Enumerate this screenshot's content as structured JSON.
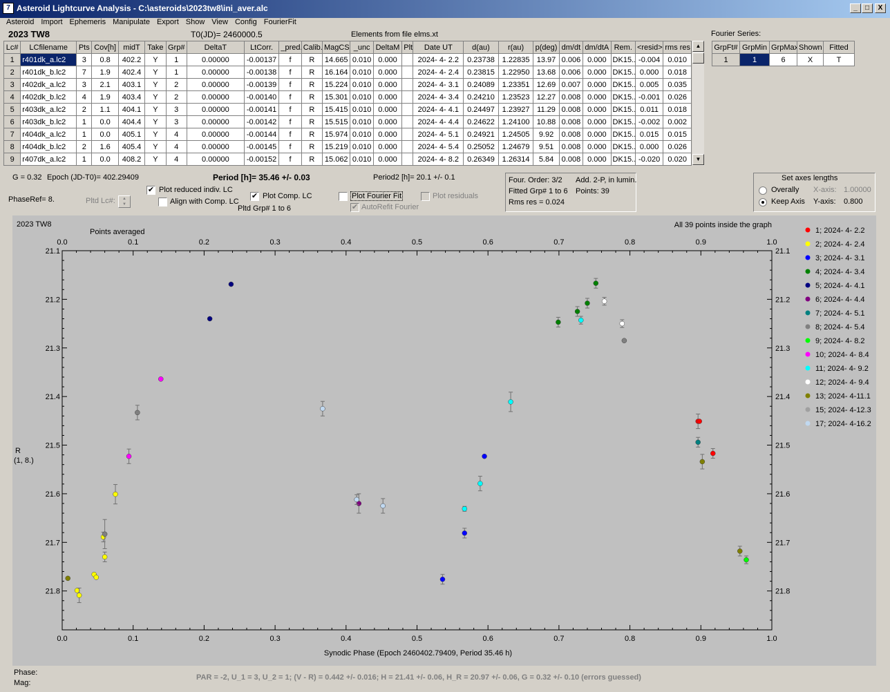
{
  "window": {
    "title": "Asteroid Lightcurve Analysis - C:\\asteroids\\2023tw8\\ini_aver.alc",
    "minimize": "_",
    "maximize": "□",
    "close": "X",
    "icon": "app-icon"
  },
  "menu": [
    "Asteroid",
    "Import",
    "Ephemeris",
    "Manipulate",
    "Export",
    "Show",
    "View",
    "Config",
    "FourierFit"
  ],
  "header": {
    "object": "2023 TW8",
    "t0": "T0(JD)= 2460000.5",
    "elements": "Elements from file elms.xt"
  },
  "lc_table": {
    "columns": [
      "Lc#",
      "LCfilename",
      "Pts",
      "Cov[h]",
      "midT",
      "Take",
      "Grp#",
      "DeltaT",
      "LtCorr.",
      "_pred.",
      "Calib.",
      "MagCS",
      "_unc",
      "DeltaM",
      "Plt",
      "Date UT",
      "d(au)",
      "r(au)",
      "p(deg)",
      "dm/dt",
      "dm/dtA",
      "Rem.",
      "<resid>",
      "rms res"
    ],
    "rows": [
      [
        "1",
        "r401dk_a.lc2",
        "3",
        "0.8",
        "402.2",
        "Y",
        "1",
        "0.00000",
        "-0.00137",
        "f",
        "R",
        "14.665",
        "0.010",
        "0.000",
        "",
        "2024- 4- 2.2",
        "0.23738",
        "1.22835",
        "13.97",
        "0.006",
        "0.000",
        "DK15..",
        "-0.004",
        "0.010"
      ],
      [
        "2",
        "r401dk_b.lc2",
        "7",
        "1.9",
        "402.4",
        "Y",
        "1",
        "0.00000",
        "-0.00138",
        "f",
        "R",
        "16.164",
        "0.010",
        "0.000",
        "",
        "2024- 4- 2.4",
        "0.23815",
        "1.22950",
        "13.68",
        "0.006",
        "0.000",
        "DK15..",
        "0.000",
        "0.018"
      ],
      [
        "3",
        "r402dk_a.lc2",
        "3",
        "2.1",
        "403.1",
        "Y",
        "2",
        "0.00000",
        "-0.00139",
        "f",
        "R",
        "15.224",
        "0.010",
        "0.000",
        "",
        "2024- 4- 3.1",
        "0.24089",
        "1.23351",
        "12.69",
        "0.007",
        "0.000",
        "DK15..",
        "0.005",
        "0.035"
      ],
      [
        "4",
        "r402dk_b.lc2",
        "4",
        "1.9",
        "403.4",
        "Y",
        "2",
        "0.00000",
        "-0.00140",
        "f",
        "R",
        "15.301",
        "0.010",
        "0.000",
        "",
        "2024- 4- 3.4",
        "0.24210",
        "1.23523",
        "12.27",
        "0.008",
        "0.000",
        "DK15..",
        "-0.001",
        "0.026"
      ],
      [
        "5",
        "r403dk_a.lc2",
        "2",
        "1.1",
        "404.1",
        "Y",
        "3",
        "0.00000",
        "-0.00141",
        "f",
        "R",
        "15.415",
        "0.010",
        "0.000",
        "",
        "2024- 4- 4.1",
        "0.24497",
        "1.23927",
        "11.29",
        "0.008",
        "0.000",
        "DK15..",
        "0.011",
        "0.018"
      ],
      [
        "6",
        "r403dk_b.lc2",
        "1",
        "0.0",
        "404.4",
        "Y",
        "3",
        "0.00000",
        "-0.00142",
        "f",
        "R",
        "15.515",
        "0.010",
        "0.000",
        "",
        "2024- 4- 4.4",
        "0.24622",
        "1.24100",
        "10.88",
        "0.008",
        "0.000",
        "DK15..",
        "-0.002",
        "0.002"
      ],
      [
        "7",
        "r404dk_a.lc2",
        "1",
        "0.0",
        "405.1",
        "Y",
        "4",
        "0.00000",
        "-0.00144",
        "f",
        "R",
        "15.974",
        "0.010",
        "0.000",
        "",
        "2024- 4- 5.1",
        "0.24921",
        "1.24505",
        "9.92",
        "0.008",
        "0.000",
        "DK15..",
        "0.015",
        "0.015"
      ],
      [
        "8",
        "r404dk_b.lc2",
        "2",
        "1.6",
        "405.4",
        "Y",
        "4",
        "0.00000",
        "-0.00145",
        "f",
        "R",
        "15.219",
        "0.010",
        "0.000",
        "",
        "2024- 4- 5.4",
        "0.25052",
        "1.24679",
        "9.51",
        "0.008",
        "0.000",
        "DK15..",
        "0.000",
        "0.026"
      ],
      [
        "9",
        "r407dk_a.lc2",
        "1",
        "0.0",
        "408.2",
        "Y",
        "4",
        "0.00000",
        "-0.00152",
        "f",
        "R",
        "15.062",
        "0.010",
        "0.000",
        "",
        "2024- 4- 8.2",
        "0.26349",
        "1.26314",
        "5.84",
        "0.008",
        "0.000",
        "DK15..",
        "-0.020",
        "0.020"
      ]
    ]
  },
  "fourier_series": {
    "label": "Fourier Series:",
    "columns": [
      "GrpFt#",
      "GrpMin",
      "GrpMax",
      "Shown",
      "Fitted"
    ],
    "row": [
      "1",
      "1",
      "6",
      "X",
      "T"
    ]
  },
  "info": {
    "g": "G = 0.32",
    "epoch": "Epoch (JD-T0)= 402.29409",
    "period": "Period [h]= 35.46 +/- 0.03",
    "period2": "Period2 [h]= 20.1 +/- 0.1",
    "phaseref": "PhaseRef= 8.",
    "pltd_lc": "Pltd Lc#:",
    "pltd_grp": "Pltd Grp#  1   to   6"
  },
  "checks": {
    "plot_reduced": {
      "label": "Plot reduced indiv. LC",
      "checked": true
    },
    "align_comp": {
      "label": "Align with Comp. LC",
      "checked": false
    },
    "plot_comp": {
      "label": "Plot Comp. LC",
      "checked": true
    },
    "plot_fourier": {
      "label": "Plot Fourier Fit",
      "checked": false
    },
    "plot_residuals": {
      "label": "Plot residuals",
      "checked": false
    },
    "autorefit": {
      "label": "AutoRefit Fourier",
      "checked": true
    }
  },
  "fourier_info": {
    "order": "Four. Order:  3/2",
    "add": "Add. 2-P, in lumin.",
    "fitted": "Fitted Grp# 1 to 6",
    "points": "Points: 39",
    "rms": "Rms res     = 0.024"
  },
  "axes_group": {
    "title": "Set axes lengths",
    "overally": "Overally",
    "keep": "Keep Axis",
    "xaxis_label": "X-axis:",
    "xaxis_val": "1.00000",
    "yaxis_label": "Y-axis:",
    "yaxis_val": "0.800"
  },
  "plot": {
    "object": "2023 TW8",
    "points_averaged": "Points averaged",
    "inside": "All 39 points inside the graph",
    "ylabel1": "R",
    "ylabel2": "(1, 8.)",
    "xlabel": "Synodic Phase (Epoch 2460402.79409, Period 35.46 h)"
  },
  "chart_data": {
    "type": "scatter",
    "xlabel": "Synodic Phase (Epoch 2460402.79409, Period 35.46 h)",
    "ylabel": "R (1, 8.)",
    "xlim": [
      0,
      1.0
    ],
    "ylim": [
      21.1,
      21.88
    ],
    "y_inverted": true,
    "xticks": [
      "0.0",
      "0.1",
      "0.2",
      "0.3",
      "0.4",
      "0.5",
      "0.6",
      "0.7",
      "0.8",
      "0.9",
      "1.0"
    ],
    "yticks": [
      "21.1",
      "21.2",
      "21.3",
      "21.4",
      "21.5",
      "21.6",
      "21.7",
      "21.8"
    ],
    "legend_position": "right",
    "series": [
      {
        "name": "1; 2024- 4- 2.2",
        "color": "#ff0000",
        "points": [
          [
            0.896,
            21.451,
            0.015
          ],
          [
            0.898,
            21.451,
            0
          ],
          [
            0.917,
            21.517,
            0.01
          ]
        ]
      },
      {
        "name": "2; 2024- 4- 2.4",
        "color": "#ffff00",
        "points": [
          [
            0.021,
            21.799,
            0
          ],
          [
            0.024,
            21.809,
            0.015
          ],
          [
            0.045,
            21.766,
            0
          ],
          [
            0.048,
            21.772,
            0
          ],
          [
            0.058,
            21.689,
            0.01
          ],
          [
            0.06,
            21.73,
            0.01
          ],
          [
            0.075,
            21.601,
            0.02
          ]
        ]
      },
      {
        "name": "3; 2024- 4- 3.1",
        "color": "#0000ff",
        "points": [
          [
            0.536,
            21.776,
            0.01
          ],
          [
            0.567,
            21.681,
            0.01
          ],
          [
            0.595,
            21.523,
            0
          ]
        ]
      },
      {
        "name": "4; 2024- 4- 3.4",
        "color": "#008000",
        "points": [
          [
            0.699,
            21.247,
            0.01
          ],
          [
            0.726,
            21.225,
            0.01
          ],
          [
            0.74,
            21.208,
            0.01
          ],
          [
            0.752,
            21.167,
            0.01
          ]
        ]
      },
      {
        "name": "5; 2024- 4- 4.1",
        "color": "#000080",
        "points": [
          [
            0.208,
            21.24,
            0
          ],
          [
            0.238,
            21.169,
            0
          ]
        ]
      },
      {
        "name": "6; 2024- 4- 4.4",
        "color": "#800080",
        "points": [
          [
            0.418,
            21.62,
            0.02
          ]
        ]
      },
      {
        "name": "7; 2024- 4- 5.1",
        "color": "#008080",
        "points": [
          [
            0.896,
            21.494,
            0.01
          ]
        ]
      },
      {
        "name": "8; 2024- 4- 5.4",
        "color": "#808080",
        "points": [
          [
            0.06,
            21.683,
            0.03
          ],
          [
            0.106,
            21.433,
            0.015
          ],
          [
            0.792,
            21.285,
            0
          ]
        ]
      },
      {
        "name": "9; 2024- 4- 8.2",
        "color": "#00ff00",
        "points": [
          [
            0.964,
            21.736,
            0.008
          ]
        ]
      },
      {
        "name": "10; 2024- 4- 8.4",
        "color": "#ff00ff",
        "points": [
          [
            0.094,
            21.523,
            0.015
          ],
          [
            0.139,
            21.364,
            0
          ]
        ]
      },
      {
        "name": "11; 2024- 4- 9.2",
        "color": "#00ffff",
        "points": [
          [
            0.567,
            21.631,
            0.005
          ],
          [
            0.589,
            21.579,
            0.015
          ],
          [
            0.632,
            21.411,
            0.02
          ],
          [
            0.731,
            21.243,
            0.008
          ]
        ]
      },
      {
        "name": "12; 2024- 4- 9.4",
        "color": "#ffffff",
        "points": [
          [
            0.764,
            21.204,
            0.008
          ],
          [
            0.789,
            21.25,
            0.008
          ]
        ]
      },
      {
        "name": "13; 2024- 4-11.1",
        "color": "#808000",
        "points": [
          [
            0.008,
            21.774,
            0
          ],
          [
            0.902,
            21.534,
            0.015
          ],
          [
            0.955,
            21.718,
            0.01
          ]
        ]
      },
      {
        "name": "15; 2024- 4-12.3",
        "color": "#a0a0a0",
        "points": []
      },
      {
        "name": "17; 2024- 4-16.2",
        "color": "#c0d8f0",
        "points": [
          [
            0.367,
            21.425,
            0.015
          ],
          [
            0.415,
            21.612,
            0.01
          ],
          [
            0.452,
            21.625,
            0.015
          ]
        ]
      }
    ]
  },
  "status": {
    "phase": "Phase:",
    "mag": "Mag:",
    "par": "PAR = -2, U_1 = 3, U_2 = 1; (V - R) = 0.442 +/- 0.016; H = 21.41 +/- 0.06, H_R = 20.97 +/- 0.06, G = 0.32 +/- 0.10 (errors guessed)"
  }
}
